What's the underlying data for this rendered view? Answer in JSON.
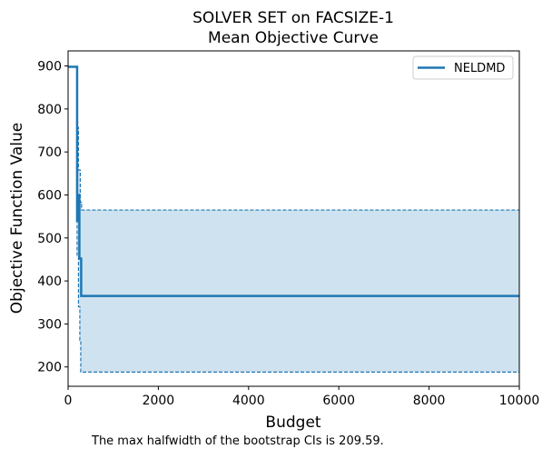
{
  "chart_data": {
    "type": "line",
    "title_lines": [
      "SOLVER SET on FACSIZE-1",
      "Mean Objective Curve"
    ],
    "xlabel": "Budget",
    "ylabel": "Objective Function Value",
    "xlim": [
      0,
      10000
    ],
    "ylim": [
      155,
      935
    ],
    "xticks": [
      0,
      2000,
      4000,
      6000,
      8000,
      10000
    ],
    "yticks": [
      200,
      300,
      400,
      500,
      600,
      700,
      800,
      900
    ],
    "grid": false,
    "legend_position": "top-right",
    "color": "#1f77b4",
    "band_color": "#cfe2ef",
    "series": [
      {
        "name": "NELDMD",
        "x": [
          0,
          200,
          200,
          230,
          230,
          250,
          250,
          290,
          290,
          10000
        ],
        "y": [
          898,
          898,
          540,
          540,
          600,
          600,
          452,
          452,
          365,
          365
        ]
      }
    ],
    "ci_upper": {
      "x": [
        200,
        200,
        230,
        230,
        270,
        270,
        300,
        300,
        10000
      ],
      "y": [
        898,
        757,
        757,
        658,
        658,
        583,
        583,
        565,
        565
      ]
    },
    "ci_lower": {
      "x": [
        200,
        200,
        230,
        230,
        260,
        260,
        280,
        280,
        10000
      ],
      "y": [
        898,
        460,
        460,
        340,
        340,
        262,
        262,
        188,
        188
      ]
    }
  },
  "caption": "The max halfwidth of the bootstrap CIs is 209.59."
}
